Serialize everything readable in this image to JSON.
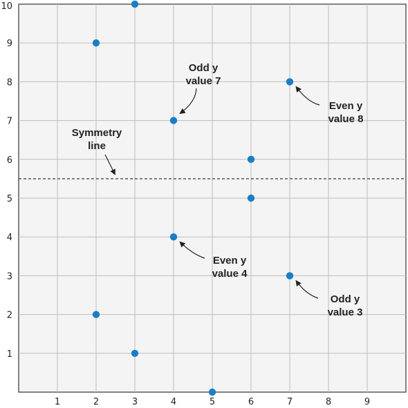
{
  "chart_data": {
    "type": "scatter",
    "xlim": [
      0,
      10
    ],
    "ylim": [
      0,
      10
    ],
    "x_ticks": [
      1,
      2,
      3,
      4,
      5,
      6,
      7,
      8,
      9
    ],
    "y_ticks": [
      1,
      2,
      3,
      4,
      5,
      6,
      7,
      8,
      9,
      10
    ],
    "grid": true,
    "point_color": "#1a7fc4",
    "points": [
      {
        "x": 2,
        "y": 9
      },
      {
        "x": 3,
        "y": 10
      },
      {
        "x": 4,
        "y": 7
      },
      {
        "x": 7,
        "y": 8
      },
      {
        "x": 6,
        "y": 6
      },
      {
        "x": 6,
        "y": 5
      },
      {
        "x": 4,
        "y": 4
      },
      {
        "x": 7,
        "y": 3
      },
      {
        "x": 2,
        "y": 2
      },
      {
        "x": 3,
        "y": 1
      },
      {
        "x": 5,
        "y": 0
      }
    ],
    "symmetry_line_y": 5.5,
    "annotations": [
      {
        "lines": [
          "Odd y",
          "value 7"
        ],
        "target": {
          "x": 4,
          "y": 7
        }
      },
      {
        "lines": [
          "Even y",
          "value 8"
        ],
        "target": {
          "x": 7,
          "y": 8
        }
      },
      {
        "lines": [
          "Symmetry",
          "line"
        ],
        "target": {
          "x": 2.4,
          "y": 5.5
        }
      },
      {
        "lines": [
          "Even y",
          "value 4"
        ],
        "target": {
          "x": 4,
          "y": 4
        }
      },
      {
        "lines": [
          "Odd y",
          "value 3"
        ],
        "target": {
          "x": 7,
          "y": 3
        }
      }
    ]
  }
}
